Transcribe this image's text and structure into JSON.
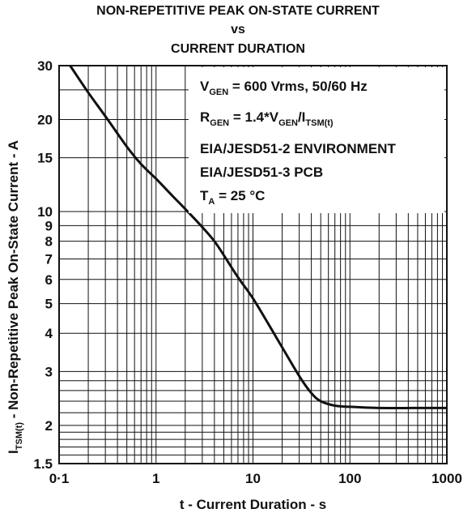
{
  "chart_data": {
    "type": "line",
    "title_lines": [
      "NON-REPETITIVE PEAK ON-STATE CURRENT",
      "vs",
      "CURRENT DURATION"
    ],
    "xlabel": "t - Current Duration - s",
    "ylabel": {
      "main": "I",
      "sub": "TSM(t)",
      "rest": " - Non-Repetitive Peak On-State Current - A"
    },
    "x_scale": "log",
    "y_scale": "log",
    "xlim": [
      0.1,
      1000
    ],
    "ylim": [
      1.5,
      30
    ],
    "x_ticks": [
      {
        "value": 0.1,
        "label": "0·1"
      },
      {
        "value": 1,
        "label": "1"
      },
      {
        "value": 10,
        "label": "10"
      },
      {
        "value": 100,
        "label": "100"
      },
      {
        "value": 1000,
        "label": "1000"
      }
    ],
    "y_ticks": [
      {
        "value": 30,
        "label": "30"
      },
      {
        "value": 20,
        "label": "20"
      },
      {
        "value": 15,
        "label": "15"
      },
      {
        "value": 10,
        "label": "10"
      },
      {
        "value": 9,
        "label": "9"
      },
      {
        "value": 8,
        "label": "8"
      },
      {
        "value": 7,
        "label": "7"
      },
      {
        "value": 6,
        "label": "6"
      },
      {
        "value": 5,
        "label": "5"
      },
      {
        "value": 4,
        "label": "4"
      },
      {
        "value": 3,
        "label": "3"
      },
      {
        "value": 2,
        "label": "2"
      },
      {
        "value": 1.5,
        "label": "1.5"
      }
    ],
    "grid": true,
    "annotations": [
      {
        "segments": [
          {
            "t": "V"
          },
          {
            "t": "GEN",
            "sub": true
          },
          {
            "t": " = 600 Vrms, 50/60 Hz"
          }
        ]
      },
      {
        "segments": [
          {
            "t": "R"
          },
          {
            "t": "GEN",
            "sub": true
          },
          {
            "t": " = 1.4*V"
          },
          {
            "t": "GEN",
            "sub": true
          },
          {
            "t": "/I"
          },
          {
            "t": "TSM(t)",
            "sub": true
          }
        ]
      },
      {
        "segments": [
          {
            "t": "EIA/JESD51-2 ENVIRONMENT"
          }
        ]
      },
      {
        "segments": [
          {
            "t": "EIA/JESD51-3 PCB"
          }
        ]
      },
      {
        "segments": [
          {
            "t": "T"
          },
          {
            "t": "A",
            "sub": true
          },
          {
            "t": " = 25 °C"
          }
        ]
      }
    ],
    "series": [
      {
        "x": [
          0.13,
          0.2,
          0.3,
          0.5,
          0.7,
          1,
          1.5,
          2,
          3,
          4,
          5,
          7,
          10,
          15,
          20,
          30,
          40,
          50,
          70,
          100,
          200,
          500,
          1000
        ],
        "y": [
          30,
          24.5,
          20.5,
          16.3,
          14.3,
          12.8,
          11.2,
          10.2,
          8.9,
          8.0,
          7.2,
          6.1,
          5.2,
          4.2,
          3.6,
          2.9,
          2.55,
          2.4,
          2.32,
          2.3,
          2.28,
          2.28,
          2.28
        ]
      }
    ],
    "colors": {
      "line": "#111111",
      "grid": "#111111"
    }
  }
}
